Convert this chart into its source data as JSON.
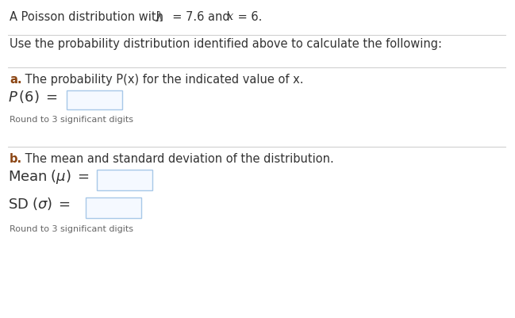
{
  "bg_color": "#ffffff",
  "text_color_dark": "#333333",
  "text_color_brown": "#8B4513",
  "box_border_color": "#a8c8e8",
  "box_fill_color": "#f5f9ff",
  "separator_color": "#cccccc",
  "line1_normal": "A Poisson distribution with  ",
  "line1_lambda": "λ",
  "line1_mid": "  = 7.6 and ",
  "line1_x": "x",
  "line1_end": " = 6.",
  "line2": "Use the probability distribution identified above to calculate the following:",
  "part_a_label": "a.",
  "part_a_text": " The probability P(x) for the indicated value of x.",
  "part_a_round": "Round to 3 significant digits",
  "part_b_label": "b.",
  "part_b_text": " The mean and standard deviation of the distribution.",
  "part_b_round": "Round to 3 significant digits",
  "fig_width": 6.49,
  "fig_height": 4.01,
  "dpi": 100
}
